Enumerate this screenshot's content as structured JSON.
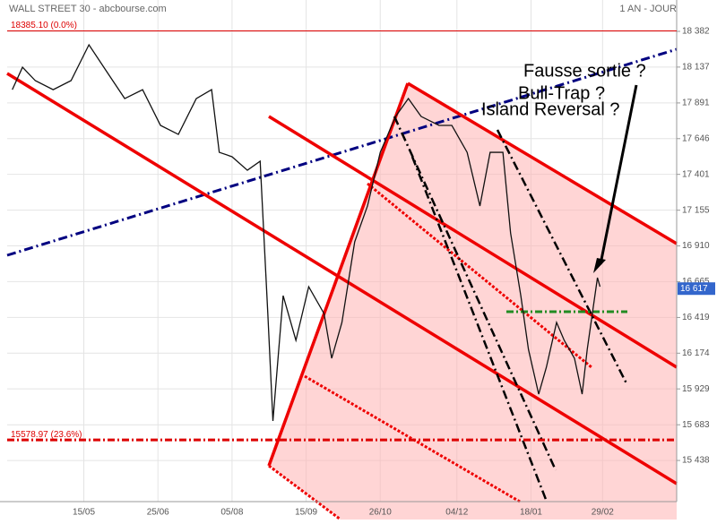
{
  "chart_data": {
    "type": "line",
    "title": "WALL STREET 30 - abcbourse.com",
    "period": "1 AN - JOUR",
    "color": "#111111",
    "x": [
      2,
      6,
      11,
      18,
      25,
      32,
      39,
      46,
      53,
      60,
      67,
      74,
      80,
      83,
      88,
      94,
      99,
      102,
      104,
      108,
      113,
      118,
      124,
      127,
      131,
      136,
      141,
      146,
      152,
      157,
      162,
      169,
      174,
      180,
      185,
      189,
      194,
      197,
      201,
      204,
      208,
      211,
      215,
      218,
      222,
      225,
      227,
      231,
      232
    ],
    "values": [
      17982,
      18136,
      18044,
      17982,
      18044,
      18290,
      18105,
      17921,
      17982,
      17737,
      17675,
      17921,
      17982,
      17552,
      17522,
      17429,
      17491,
      16446,
      15709,
      16569,
      16262,
      16630,
      16446,
      16139,
      16385,
      16938,
      17184,
      17552,
      17798,
      17921,
      17798,
      17737,
      17737,
      17552,
      17184,
      17552,
      17552,
      16999,
      16569,
      16200,
      15893,
      16077,
      16385,
      16262,
      16139,
      15893,
      16200,
      16692,
      16630
    ],
    "xlim": [
      0,
      262
    ],
    "xticks": [
      {
        "value": 30,
        "label": "15/05"
      },
      {
        "value": 59,
        "label": "25/06"
      },
      {
        "value": 88,
        "label": "05/08"
      },
      {
        "value": 117,
        "label": "15/09"
      },
      {
        "value": 146,
        "label": "26/10"
      },
      {
        "value": 176,
        "label": "04/12"
      },
      {
        "value": 205,
        "label": "18/01"
      },
      {
        "value": 233,
        "label": "29/02"
      }
    ],
    "ylim": [
      15168,
      18462
    ],
    "yticks": [
      {
        "value": 18382,
        "label": "18 382"
      },
      {
        "value": 18137,
        "label": "18 137"
      },
      {
        "value": 17891,
        "label": "17 891"
      },
      {
        "value": 17646,
        "label": "17 646"
      },
      {
        "value": 17401,
        "label": "17 401"
      },
      {
        "value": 17155,
        "label": "17 155"
      },
      {
        "value": 16910,
        "label": "16 910"
      },
      {
        "value": 16665,
        "label": "16 665"
      },
      {
        "value": 16419,
        "label": "16 419"
      },
      {
        "value": 16174,
        "label": "16 174"
      },
      {
        "value": 15929,
        "label": "15 929"
      },
      {
        "value": 15683,
        "label": "15 683"
      },
      {
        "value": 15438,
        "label": "15 438"
      }
    ],
    "grid": true,
    "levels": [
      {
        "value": 18385.1,
        "label": "18385.10  (0.0%)",
        "color": "#dd0000"
      },
      {
        "value": 15578.97,
        "label": "15578.97  (23.6%)",
        "color": "#dd0000"
      }
    ],
    "last": {
      "value": 16617,
      "label": "16 617",
      "color": "#3366cc"
    },
    "annotations": [
      "Fausse sortie ?",
      "Bull-Trap ?",
      "Island Reversal ?"
    ]
  }
}
